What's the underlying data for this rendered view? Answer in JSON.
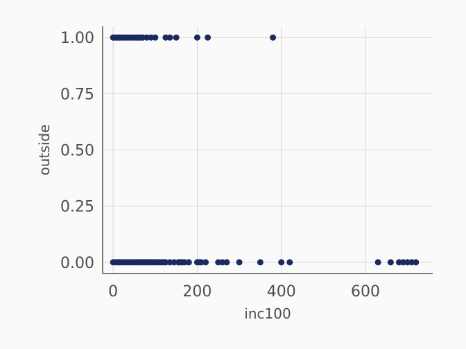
{
  "chart_data": {
    "type": "scatter",
    "title": "",
    "xlabel": "inc100",
    "ylabel": "outside",
    "xlim": [
      -25,
      760
    ],
    "ylim": [
      -0.05,
      1.05
    ],
    "x_ticks": [
      0,
      200,
      400,
      600
    ],
    "x_tick_labels": [
      "0",
      "200",
      "400",
      "600"
    ],
    "y_ticks": [
      0,
      0.25,
      0.5,
      0.75,
      1
    ],
    "y_tick_labels": [
      "0.00",
      "0.25",
      "0.50",
      "0.75",
      "1.00"
    ],
    "grid": true,
    "legend": "none",
    "color": "#1a2a5e",
    "series": [
      {
        "x": [
          0,
          5,
          10,
          15,
          20,
          25,
          30,
          35,
          40,
          45,
          50,
          55,
          60,
          65,
          70,
          80,
          90,
          100,
          125,
          135,
          150,
          200,
          225,
          380,
          0,
          5,
          10,
          15,
          20,
          25,
          30,
          35,
          40,
          45,
          50,
          55,
          60,
          65,
          70,
          75,
          80,
          85,
          90,
          95,
          100,
          105,
          110,
          115,
          120,
          125,
          135,
          145,
          155,
          160,
          165,
          170,
          180,
          200,
          205,
          210,
          220,
          250,
          260,
          270,
          300,
          350,
          400,
          420,
          630,
          660,
          680,
          690,
          700,
          710,
          720
        ],
        "y": [
          1,
          1,
          1,
          1,
          1,
          1,
          1,
          1,
          1,
          1,
          1,
          1,
          1,
          1,
          1,
          1,
          1,
          1,
          1,
          1,
          1,
          1,
          1,
          1,
          0,
          0,
          0,
          0,
          0,
          0,
          0,
          0,
          0,
          0,
          0,
          0,
          0,
          0,
          0,
          0,
          0,
          0,
          0,
          0,
          0,
          0,
          0,
          0,
          0,
          0,
          0,
          0,
          0,
          0,
          0,
          0,
          0,
          0,
          0,
          0,
          0,
          0,
          0,
          0,
          0,
          0,
          0,
          0,
          0,
          0,
          0,
          0,
          0,
          0,
          0
        ]
      }
    ]
  }
}
